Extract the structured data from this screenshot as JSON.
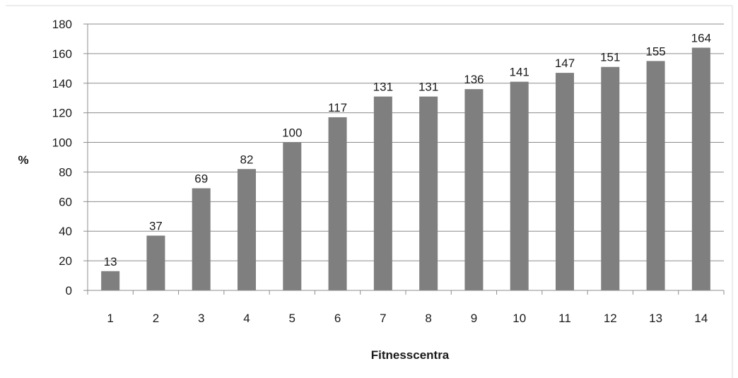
{
  "chart_data": {
    "type": "bar",
    "title": "",
    "xlabel": "Fitnesscentra",
    "ylabel": "%",
    "categories": [
      "1",
      "2",
      "3",
      "4",
      "5",
      "6",
      "7",
      "8",
      "9",
      "10",
      "11",
      "12",
      "13",
      "14"
    ],
    "values": [
      13,
      37,
      69,
      82,
      100,
      117,
      131,
      131,
      136,
      141,
      147,
      151,
      155,
      164
    ],
    "data_labels": [
      "13",
      "37",
      "69",
      "82",
      "100",
      "117",
      "131",
      "131",
      "136",
      "141",
      "147",
      "151",
      "155",
      "164"
    ],
    "y_ticks": [
      0,
      20,
      40,
      60,
      80,
      100,
      120,
      140,
      160,
      180
    ],
    "ylim": [
      0,
      180
    ],
    "grid": true,
    "legend": "none",
    "colors": {
      "bar": "#7f7f7f",
      "grid": "#8c8c8c",
      "axis": "#8c8c8c",
      "frame": "#d9d9d9"
    }
  }
}
